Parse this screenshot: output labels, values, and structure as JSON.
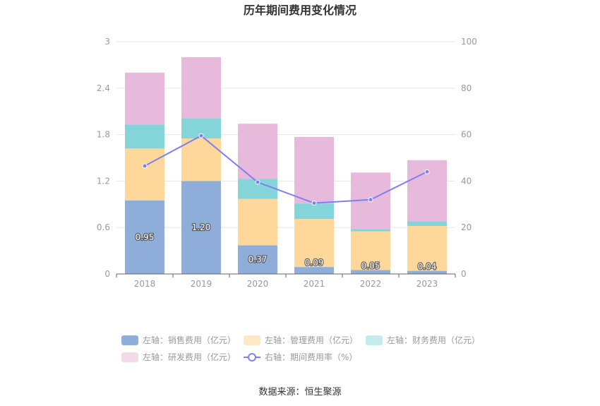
{
  "chart_data": {
    "type": "bar",
    "title": "历年期间费用变化情况",
    "categories": [
      "2018",
      "2019",
      "2020",
      "2021",
      "2022",
      "2023"
    ],
    "stacked": true,
    "series": [
      {
        "name": "左轴：销售费用（亿元）",
        "axis": "left",
        "type": "bar",
        "color": "#8eadd9",
        "values": [
          0.95,
          1.2,
          0.37,
          0.09,
          0.05,
          0.04
        ],
        "labels": [
          "0.95",
          "1.20",
          "0.37",
          "0.09",
          "0.05",
          "0.04"
        ]
      },
      {
        "name": "左轴：管理费用（亿元）",
        "axis": "left",
        "type": "bar",
        "color": "#fed89b",
        "values": [
          0.67,
          0.55,
          0.6,
          0.62,
          0.5,
          0.58
        ]
      },
      {
        "name": "左轴：财务费用（亿元）",
        "axis": "left",
        "type": "bar",
        "color": "#84d5d9",
        "values": [
          0.31,
          0.26,
          0.26,
          0.2,
          0.03,
          0.06
        ]
      },
      {
        "name": "左轴：研发费用（亿元）",
        "axis": "left",
        "type": "bar",
        "color": "#e7b9da",
        "values": [
          0.67,
          0.79,
          0.71,
          0.86,
          0.73,
          0.79
        ]
      },
      {
        "name": "右轴：期间费用率（%）",
        "axis": "right",
        "type": "line",
        "color": "#7f7ff2",
        "values": [
          46.5,
          59.5,
          39.5,
          30.5,
          32.0,
          44.0
        ]
      }
    ],
    "yleft": {
      "ticks": [
        "0",
        "0.6",
        "1.2",
        "1.8",
        "2.4",
        "3"
      ],
      "ylim": [
        0,
        3
      ]
    },
    "yright": {
      "ticks": [
        "0",
        "20",
        "40",
        "60",
        "80",
        "100"
      ],
      "ylim": [
        0,
        100
      ]
    },
    "legend_swatch_colors": [
      "#8eadd9",
      "#fde8c4",
      "#c3eaec",
      "#f3dbec",
      "#7f7ff2"
    ],
    "grid": true,
    "legend_position": "bottom",
    "source": "数据来源：恒生聚源"
  }
}
